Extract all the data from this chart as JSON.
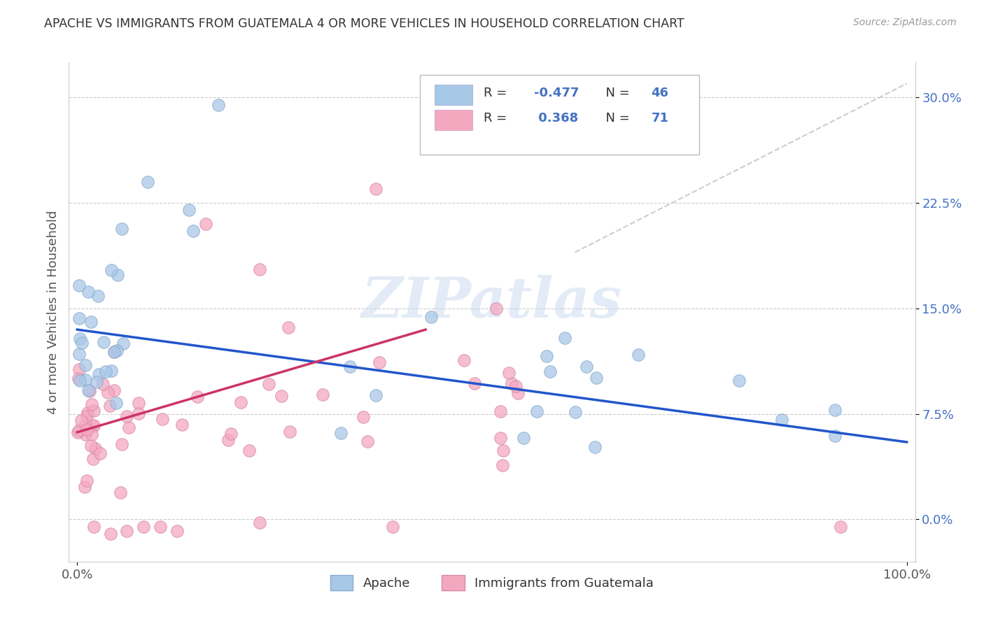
{
  "title": "APACHE VS IMMIGRANTS FROM GUATEMALA 4 OR MORE VEHICLES IN HOUSEHOLD CORRELATION CHART",
  "source": "Source: ZipAtlas.com",
  "ylabel": "4 or more Vehicles in Household",
  "apache_color": "#a8c8e8",
  "guatemala_color": "#f4a8c0",
  "apache_edge_color": "#88aacc",
  "guatemala_edge_color": "#d888a8",
  "apache_line_color": "#2255cc",
  "guatemala_line_color": "#cc3366",
  "trend_line_color": "#c8c8c8",
  "R_apache": -0.477,
  "N_apache": 46,
  "R_guatemala": 0.368,
  "N_guatemala": 71,
  "watermark": "ZIPatlas",
  "label_color": "#4472c4",
  "ytick_color": "#4472c4",
  "yticks": [
    0.0,
    0.075,
    0.15,
    0.225,
    0.3
  ],
  "ytick_labels": [
    "0.0%",
    "7.5%",
    "15.0%",
    "22.5%",
    "30.0%"
  ],
  "xlim": [
    -0.01,
    1.01
  ],
  "ylim": [
    -0.03,
    0.325
  ],
  "apache_line_x": [
    0.0,
    1.0
  ],
  "apache_line_y": [
    0.135,
    0.055
  ],
  "guatemala_line_x": [
    0.0,
    0.42
  ],
  "guatemala_line_y": [
    0.062,
    0.135
  ],
  "dash_line_x": [
    0.6,
    1.0
  ],
  "dash_line_y": [
    0.19,
    0.31
  ]
}
